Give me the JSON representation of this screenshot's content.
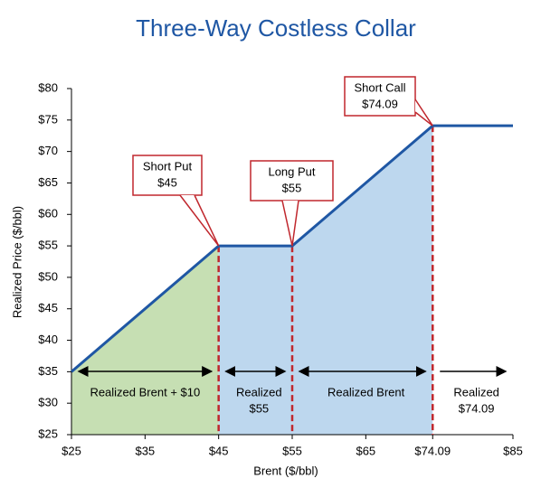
{
  "chart_data": {
    "type": "line",
    "title": "Three-Way Costless Collar",
    "x_label": "Brent ($/bbl)",
    "y_label": "Realized Price ($/bbl)",
    "x": [
      25,
      45,
      55,
      74.09,
      85
    ],
    "values": [
      35,
      55,
      55,
      74.09,
      74.09
    ],
    "color": "#1f57a4",
    "fill_colors": [
      "#c6dfb3",
      "#bdd7ee"
    ],
    "annotation_color": "#c0272d",
    "xlim": [
      25,
      85
    ],
    "ylim": [
      25,
      80
    ],
    "xticks": [
      {
        "value": 25,
        "label": "$25"
      },
      {
        "value": 35,
        "label": "$35"
      },
      {
        "value": 45,
        "label": "$45"
      },
      {
        "value": 55,
        "label": "$55"
      },
      {
        "value": 65,
        "label": "$65"
      },
      {
        "value": 74.09,
        "label": "$74.09"
      },
      {
        "value": 85,
        "label": "$85"
      }
    ],
    "yticks": [
      {
        "value": 25,
        "label": "$25"
      },
      {
        "value": 30,
        "label": "$30"
      },
      {
        "value": 35,
        "label": "$35"
      },
      {
        "value": 40,
        "label": "$40"
      },
      {
        "value": 45,
        "label": "$45"
      },
      {
        "value": 50,
        "label": "$50"
      },
      {
        "value": 55,
        "label": "$55"
      },
      {
        "value": 60,
        "label": "$60"
      },
      {
        "value": 65,
        "label": "$65"
      },
      {
        "value": 70,
        "label": "$70"
      },
      {
        "value": 75,
        "label": "$75"
      },
      {
        "value": 80,
        "label": "$80"
      }
    ],
    "annotations": [
      {
        "x": 45,
        "y": 55,
        "lines": [
          "Short Put",
          "$45"
        ]
      },
      {
        "x": 55,
        "y": 55,
        "lines": [
          "Long Put",
          "$55"
        ]
      },
      {
        "x": 74.09,
        "y": 74.09,
        "lines": [
          "Short Call",
          "$74.09"
        ]
      }
    ],
    "range_labels": [
      [
        "Realized Brent + $10"
      ],
      [
        "Realized",
        "$55"
      ],
      [
        "Realized Brent"
      ],
      [
        "Realized",
        "$74.09"
      ]
    ]
  }
}
